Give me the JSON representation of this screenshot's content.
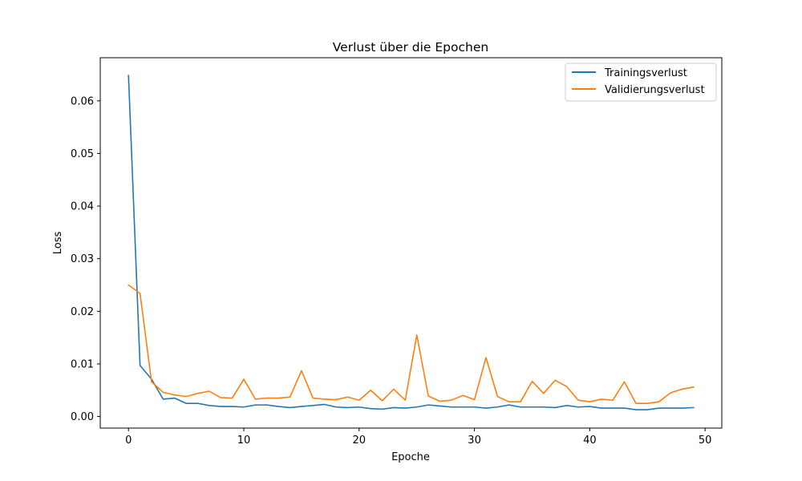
{
  "chart_data": {
    "type": "line",
    "title": "Verlust über die Epochen",
    "xlabel": "Epoche",
    "ylabel": "Loss",
    "xlim": [
      -2.45,
      51.45
    ],
    "ylim": [
      -0.0022,
      0.0682
    ],
    "xticks": [
      0,
      10,
      20,
      30,
      40,
      50
    ],
    "yticks": [
      0.0,
      0.01,
      0.02,
      0.03,
      0.04,
      0.05,
      0.06
    ],
    "ytick_labels": [
      "0.00",
      "0.01",
      "0.02",
      "0.03",
      "0.04",
      "0.05",
      "0.06"
    ],
    "grid": false,
    "legend_position": "top-right",
    "x": [
      0,
      1,
      2,
      3,
      4,
      5,
      6,
      7,
      8,
      9,
      10,
      11,
      12,
      13,
      14,
      15,
      16,
      17,
      18,
      19,
      20,
      21,
      22,
      23,
      24,
      25,
      26,
      27,
      28,
      29,
      30,
      31,
      32,
      33,
      34,
      35,
      36,
      37,
      38,
      39,
      40,
      41,
      42,
      43,
      44,
      45,
      46,
      47,
      48,
      49
    ],
    "series": [
      {
        "name": "Trainingsverlust",
        "color": "#1f77b4",
        "values": [
          0.0648,
          0.0097,
          0.0071,
          0.0033,
          0.0035,
          0.0025,
          0.0025,
          0.0021,
          0.0019,
          0.0019,
          0.0018,
          0.0022,
          0.0022,
          0.0019,
          0.0017,
          0.0019,
          0.0021,
          0.0023,
          0.0018,
          0.0017,
          0.0018,
          0.0015,
          0.0014,
          0.0017,
          0.0016,
          0.0018,
          0.0022,
          0.002,
          0.0018,
          0.0018,
          0.0018,
          0.0016,
          0.0018,
          0.0022,
          0.0018,
          0.0018,
          0.0018,
          0.0017,
          0.0021,
          0.0018,
          0.0019,
          0.0016,
          0.0016,
          0.0016,
          0.0013,
          0.0013,
          0.0016,
          0.0016,
          0.0016,
          0.0017
        ]
      },
      {
        "name": "Validierungsverlust",
        "color": "#ff7f0e",
        "values": [
          0.025,
          0.0234,
          0.0066,
          0.0046,
          0.0041,
          0.0038,
          0.0044,
          0.0048,
          0.0036,
          0.0035,
          0.0071,
          0.0033,
          0.0035,
          0.0035,
          0.0037,
          0.0087,
          0.0035,
          0.0033,
          0.0032,
          0.0037,
          0.0031,
          0.005,
          0.003,
          0.0052,
          0.0031,
          0.0155,
          0.0039,
          0.0029,
          0.0031,
          0.004,
          0.0032,
          0.0112,
          0.0038,
          0.0028,
          0.0028,
          0.0067,
          0.0044,
          0.0069,
          0.0057,
          0.0031,
          0.0028,
          0.0033,
          0.0031,
          0.0066,
          0.0025,
          0.0025,
          0.0028,
          0.0045,
          0.0052,
          0.0056
        ]
      }
    ]
  }
}
